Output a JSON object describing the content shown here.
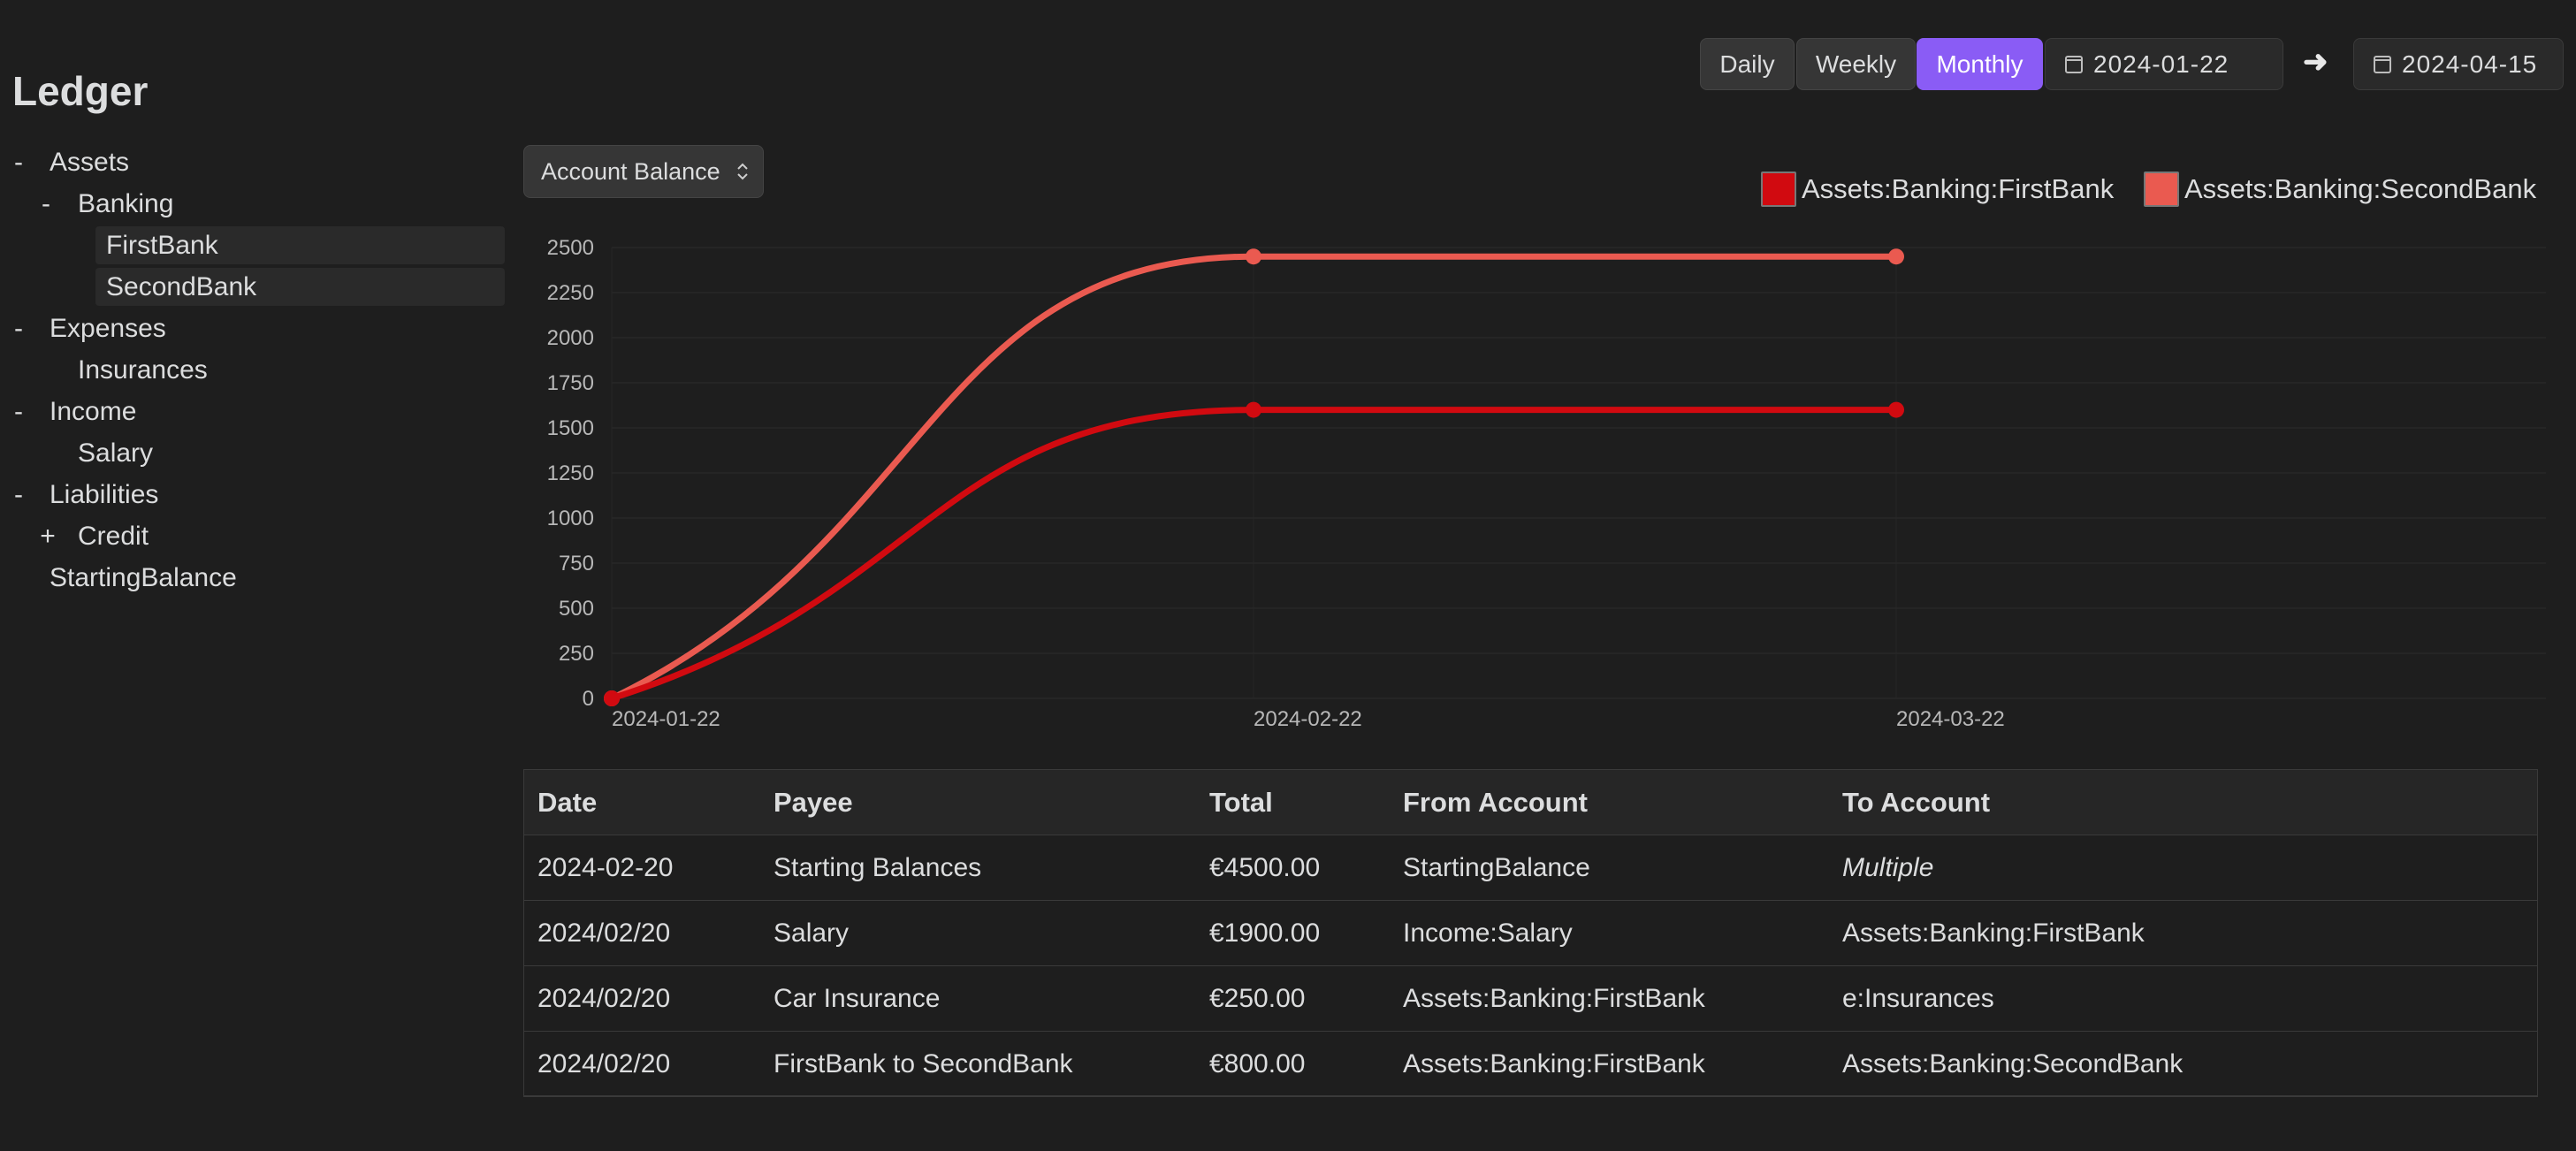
{
  "sidebar": {
    "title": "Ledger",
    "tree": [
      {
        "toggle": "-",
        "label": "Assets"
      },
      {
        "toggle": "-",
        "label": "Banking"
      },
      {
        "toggle": "",
        "label": "FirstBank"
      },
      {
        "toggle": "",
        "label": "SecondBank"
      },
      {
        "toggle": "-",
        "label": "Expenses"
      },
      {
        "toggle": "",
        "label": "Insurances"
      },
      {
        "toggle": "-",
        "label": "Income"
      },
      {
        "toggle": "",
        "label": "Salary"
      },
      {
        "toggle": "-",
        "label": "Liabilities"
      },
      {
        "toggle": "+",
        "label": "Credit"
      },
      {
        "toggle": "",
        "label": "StartingBalance"
      }
    ]
  },
  "controls": {
    "daily": "Daily",
    "weekly": "Weekly",
    "monthly": "Monthly",
    "active_interval": "Monthly",
    "start_date": "2024-01-22",
    "end_date": "2024-04-15",
    "arrow": "➜",
    "accent_color": "#8a5cf5"
  },
  "chart_selector": {
    "label": "Account Balance"
  },
  "chart_data": {
    "type": "line",
    "x": [
      "2024-01-22",
      "2024-02-22",
      "2024-03-22"
    ],
    "ylim": [
      0,
      2500
    ],
    "yticks": [
      0,
      250,
      500,
      750,
      1000,
      1250,
      1500,
      1750,
      2000,
      2250,
      2500
    ],
    "grid": true,
    "legend_position": "top-right",
    "series": [
      {
        "name": "Assets:Banking:FirstBank",
        "color": "#d10a10",
        "values": [
          0,
          1600,
          1600
        ]
      },
      {
        "name": "Assets:Banking:SecondBank",
        "color": "#ea5a50",
        "values": [
          0,
          2450,
          2450
        ]
      }
    ]
  },
  "table": {
    "headers": [
      "Date",
      "Payee",
      "Total",
      "From Account",
      "To Account"
    ],
    "rows": [
      {
        "date": "2024-02-20",
        "payee": "Starting Balances",
        "total": "€4500.00",
        "from": "StartingBalance",
        "to": "Multiple"
      },
      {
        "date": "2024/02/20",
        "payee": "Salary",
        "total": "€1900.00",
        "from": "Income:Salary",
        "to": "Assets:Banking:FirstBank"
      },
      {
        "date": "2024/02/20",
        "payee": "Car Insurance",
        "total": "€250.00",
        "from": "Assets:Banking:FirstBank",
        "to": "e:Insurances"
      },
      {
        "date": "2024/02/20",
        "payee": "FirstBank to SecondBank",
        "total": "€800.00",
        "from": "Assets:Banking:FirstBank",
        "to": "Assets:Banking:SecondBank"
      }
    ]
  }
}
